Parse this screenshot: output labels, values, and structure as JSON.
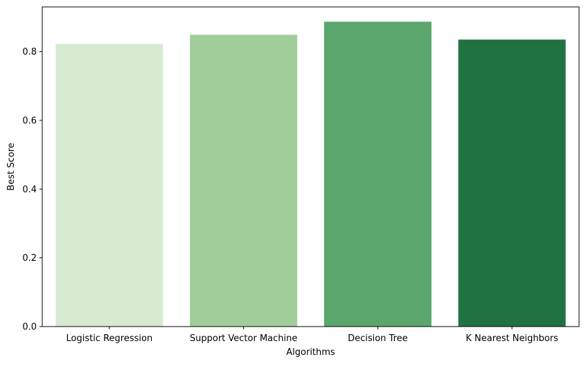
{
  "chart_data": {
    "type": "bar",
    "title": "",
    "xlabel": "Algorithms",
    "ylabel": "Best Score",
    "categories": [
      "Logistic Regression",
      "Support Vector Machine",
      "Decision Tree",
      "K Nearest Neighbors"
    ],
    "values": [
      0.822,
      0.849,
      0.887,
      0.835
    ],
    "colors": [
      "#d6ebd2",
      "#a0cd9a",
      "#5aa66c",
      "#217241"
    ],
    "ylim": [
      0,
      0.93
    ],
    "yticks": [
      "0.0",
      "0.2",
      "0.4",
      "0.6",
      "0.8"
    ],
    "grid": false,
    "legend": "none"
  }
}
